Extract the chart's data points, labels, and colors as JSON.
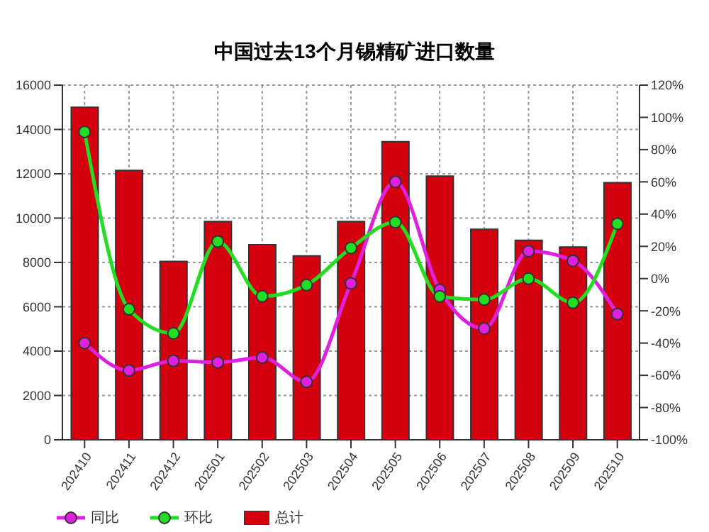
{
  "chart_data": {
    "type": "bar",
    "title": "中国过去13个月锡精矿进口数量",
    "categories": [
      "202410",
      "202411",
      "202412",
      "202501",
      "202502",
      "202503",
      "202504",
      "202505",
      "202506",
      "202507",
      "202508",
      "202509",
      "202510"
    ],
    "series": [
      {
        "name": "同比",
        "type": "line",
        "axis": "y2",
        "color": "#e020e0",
        "values": [
          -40,
          -57,
          -51,
          -52,
          -49,
          -64,
          -3,
          60,
          -7,
          -31,
          17,
          11,
          -22
        ]
      },
      {
        "name": "环比",
        "type": "line",
        "axis": "y2",
        "color": "#22dd22",
        "values": [
          91,
          -19,
          -34,
          23,
          -11,
          -4,
          19,
          35,
          -11,
          -13,
          0,
          -15,
          34
        ]
      },
      {
        "name": "总计",
        "color": "#d40010",
        "values": [
          15000,
          12150,
          8050,
          9850,
          8800,
          8300,
          9850,
          13450,
          11900,
          9500,
          9000,
          8700,
          11600
        ]
      }
    ],
    "ylim": [
      0,
      16000
    ],
    "yticks": [
      0,
      2000,
      4000,
      6000,
      8000,
      10000,
      12000,
      14000,
      16000
    ],
    "y2lim": [
      -100,
      120
    ],
    "y2ticks": [
      {
        "value": -100,
        "label": "-100%"
      },
      {
        "value": -80,
        "label": "-80%"
      },
      {
        "value": -60,
        "label": "-60%"
      },
      {
        "value": -40,
        "label": "-40%"
      },
      {
        "value": -20,
        "label": "-20%"
      },
      {
        "value": 0,
        "label": "0%"
      },
      {
        "value": 20,
        "label": "20%"
      },
      {
        "value": 40,
        "label": "40%"
      },
      {
        "value": 60,
        "label": "60%"
      },
      {
        "value": 80,
        "label": "80%"
      },
      {
        "value": 100,
        "label": "100%"
      },
      {
        "value": 120,
        "label": "120%"
      }
    ],
    "grid": true,
    "legend": "bottom",
    "marker": "circle"
  }
}
